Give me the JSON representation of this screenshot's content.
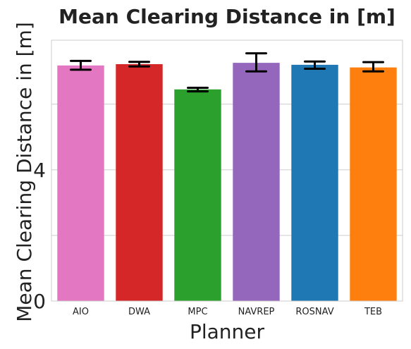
{
  "chart_data": {
    "type": "bar",
    "title": "Mean Clearing Distance in [m]",
    "xlabel": "Planner",
    "ylabel": "Mean Clearing Distance in [m]",
    "ylim": [
      0,
      7.95
    ],
    "yticks": [
      0,
      2,
      4,
      6
    ],
    "ytick_labels": [
      "0",
      "",
      "4",
      ""
    ],
    "grid": true,
    "categories": [
      "AIO",
      "DWA",
      "MPC",
      "NAVREP",
      "ROSNAV",
      "TEB"
    ],
    "values": [
      7.18,
      7.22,
      6.45,
      7.26,
      7.2,
      7.12
    ],
    "error_low": [
      7.05,
      7.15,
      6.39,
      7.0,
      7.08,
      7.0
    ],
    "error_high": [
      7.32,
      7.29,
      6.5,
      7.55,
      7.3,
      7.28
    ],
    "colors": [
      "#e377c2",
      "#d62728",
      "#2ca02c",
      "#9467bd",
      "#1f77b4",
      "#ff7f0e"
    ]
  }
}
